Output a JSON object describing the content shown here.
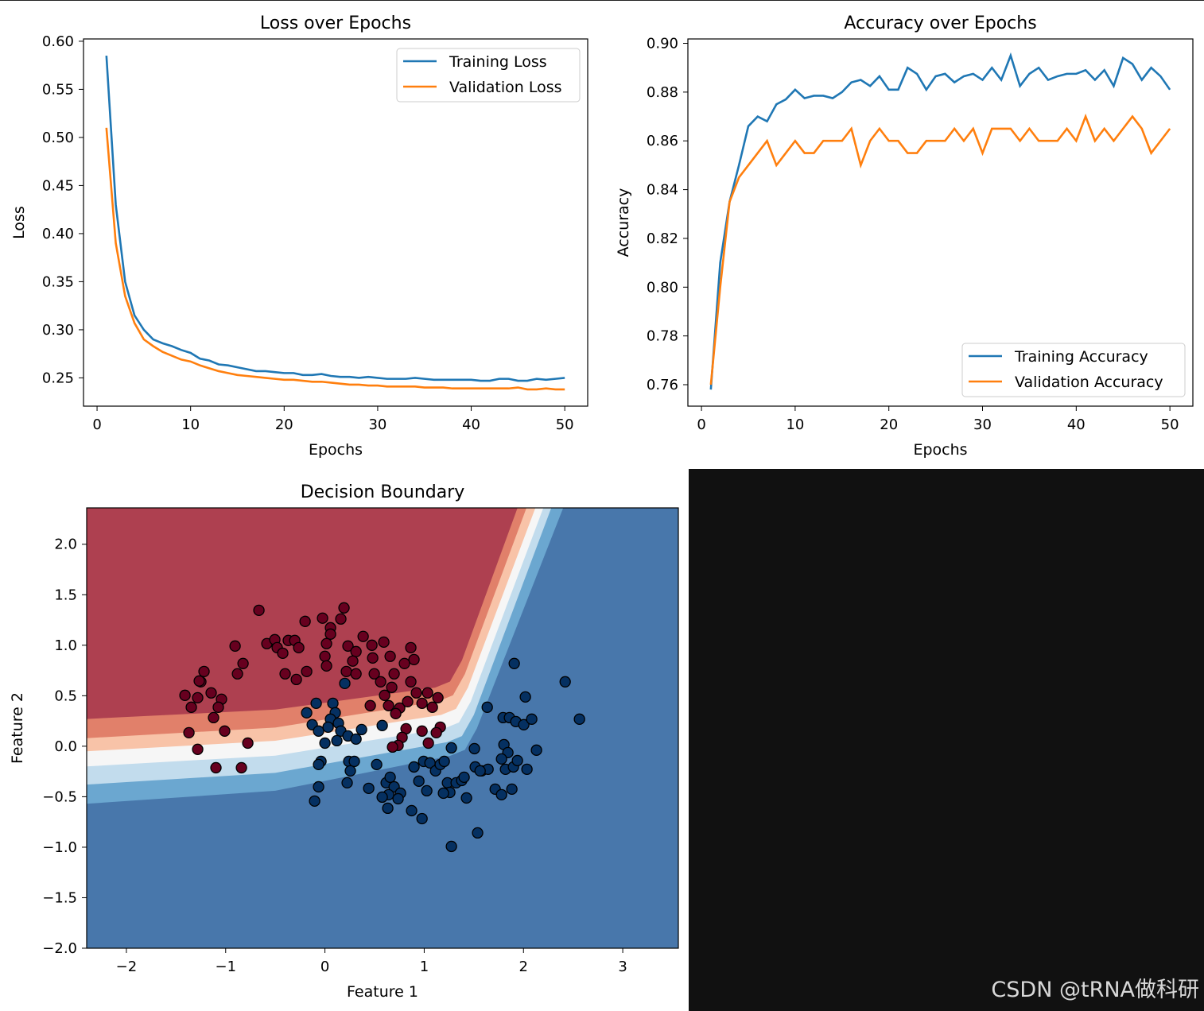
{
  "colors": {
    "training": "#1f77b4",
    "validation": "#ff7f0e",
    "class0": "#67001f",
    "class1": "#053061",
    "contour": [
      "#ae4050",
      "#e1806a",
      "#f8c3a8",
      "#f6f6f6",
      "#c2dced",
      "#6ba7d0",
      "#4877ab"
    ]
  },
  "watermark": "CSDN @tRNA做科研",
  "chart_data": [
    {
      "type": "line",
      "title": "Loss over Epochs",
      "xlabel": "Epochs",
      "ylabel": "Loss",
      "xlim": [
        -1.45,
        52.45
      ],
      "ylim": [
        0.2206,
        0.6024
      ],
      "xticks": [
        0,
        10,
        20,
        30,
        40,
        50
      ],
      "yticks": [
        0.25,
        0.3,
        0.35,
        0.4,
        0.45,
        0.5,
        0.55,
        0.6
      ],
      "ytick_labels": [
        "0.25",
        "0.30",
        "0.35",
        "0.40",
        "0.45",
        "0.50",
        "0.55",
        "0.60"
      ],
      "legend": "top-right",
      "grid": false,
      "x": [
        1,
        2,
        3,
        4,
        5,
        6,
        7,
        8,
        9,
        10,
        11,
        12,
        13,
        14,
        15,
        16,
        17,
        18,
        19,
        20,
        21,
        22,
        23,
        24,
        25,
        26,
        27,
        28,
        29,
        30,
        31,
        32,
        33,
        34,
        35,
        36,
        37,
        38,
        39,
        40,
        41,
        42,
        43,
        44,
        45,
        46,
        47,
        48,
        49,
        50
      ],
      "series": [
        {
          "name": "Training Loss",
          "values": [
            0.585,
            0.43,
            0.35,
            0.315,
            0.3,
            0.29,
            0.286,
            0.283,
            0.279,
            0.276,
            0.27,
            0.268,
            0.264,
            0.263,
            0.261,
            0.259,
            0.257,
            0.257,
            0.256,
            0.255,
            0.255,
            0.253,
            0.253,
            0.254,
            0.252,
            0.251,
            0.251,
            0.25,
            0.251,
            0.25,
            0.249,
            0.249,
            0.249,
            0.25,
            0.249,
            0.248,
            0.248,
            0.248,
            0.248,
            0.248,
            0.247,
            0.247,
            0.249,
            0.249,
            0.247,
            0.247,
            0.249,
            0.248,
            0.249,
            0.25
          ]
        },
        {
          "name": "Validation Loss",
          "values": [
            0.51,
            0.39,
            0.335,
            0.307,
            0.29,
            0.283,
            0.277,
            0.273,
            0.269,
            0.267,
            0.263,
            0.26,
            0.257,
            0.255,
            0.253,
            0.252,
            0.251,
            0.25,
            0.249,
            0.248,
            0.248,
            0.247,
            0.246,
            0.246,
            0.245,
            0.244,
            0.243,
            0.243,
            0.242,
            0.242,
            0.241,
            0.241,
            0.241,
            0.241,
            0.24,
            0.24,
            0.24,
            0.239,
            0.239,
            0.239,
            0.239,
            0.239,
            0.239,
            0.239,
            0.24,
            0.238,
            0.238,
            0.239,
            0.238,
            0.238
          ]
        }
      ]
    },
    {
      "type": "line",
      "title": "Accuracy over Epochs",
      "xlabel": "Epochs",
      "ylabel": "Accuracy",
      "xlim": [
        -1.45,
        52.45
      ],
      "ylim": [
        0.7512,
        0.9018
      ],
      "xticks": [
        0,
        10,
        20,
        30,
        40,
        50
      ],
      "yticks": [
        0.76,
        0.78,
        0.8,
        0.82,
        0.84,
        0.86,
        0.88,
        0.9
      ],
      "ytick_labels": [
        "0.76",
        "0.78",
        "0.80",
        "0.82",
        "0.84",
        "0.86",
        "0.88",
        "0.90"
      ],
      "legend": "bottom-right",
      "grid": false,
      "x": [
        1,
        2,
        3,
        4,
        5,
        6,
        7,
        8,
        9,
        10,
        11,
        12,
        13,
        14,
        15,
        16,
        17,
        18,
        19,
        20,
        21,
        22,
        23,
        24,
        25,
        26,
        27,
        28,
        29,
        30,
        31,
        32,
        33,
        34,
        35,
        36,
        37,
        38,
        39,
        40,
        41,
        42,
        43,
        44,
        45,
        46,
        47,
        48,
        49,
        50
      ],
      "series": [
        {
          "name": "Training Accuracy",
          "values": [
            0.758,
            0.81,
            0.835,
            0.85,
            0.866,
            0.87,
            0.868,
            0.875,
            0.877,
            0.881,
            0.8775,
            0.8785,
            0.8785,
            0.8775,
            0.88,
            0.884,
            0.885,
            0.8825,
            0.8865,
            0.881,
            0.881,
            0.89,
            0.8875,
            0.881,
            0.8865,
            0.8875,
            0.884,
            0.8865,
            0.8875,
            0.885,
            0.89,
            0.885,
            0.895,
            0.8825,
            0.8875,
            0.89,
            0.885,
            0.8865,
            0.8875,
            0.8875,
            0.889,
            0.885,
            0.889,
            0.8825,
            0.894,
            0.8915,
            0.885,
            0.89,
            0.8865,
            0.881
          ]
        },
        {
          "name": "Validation Accuracy",
          "values": [
            0.76,
            0.8,
            0.835,
            0.845,
            0.85,
            0.855,
            0.86,
            0.85,
            0.855,
            0.86,
            0.855,
            0.855,
            0.86,
            0.86,
            0.86,
            0.865,
            0.85,
            0.86,
            0.865,
            0.86,
            0.86,
            0.855,
            0.855,
            0.86,
            0.86,
            0.86,
            0.865,
            0.86,
            0.865,
            0.855,
            0.865,
            0.865,
            0.865,
            0.86,
            0.865,
            0.86,
            0.86,
            0.86,
            0.865,
            0.86,
            0.87,
            0.86,
            0.865,
            0.86,
            0.865,
            0.87,
            0.865,
            0.855,
            0.86,
            0.865
          ]
        }
      ]
    },
    {
      "type": "scatter",
      "title": "Decision Boundary",
      "xlabel": "Feature 1",
      "ylabel": "Feature 2",
      "xlim": [
        -2.4,
        3.56
      ],
      "ylim": [
        -2.0,
        2.36
      ],
      "xticks": [
        -2,
        -1,
        0,
        1,
        2,
        3
      ],
      "xtick_labels": [
        "−2",
        "−1",
        "0",
        "1",
        "2",
        "3"
      ],
      "yticks": [
        -2.0,
        -1.5,
        -1.0,
        -0.5,
        0.0,
        0.5,
        1.0,
        1.5,
        2.0
      ],
      "ytick_labels": [
        "−2.0",
        "−1.5",
        "−1.0",
        "−0.5",
        "0.0",
        "0.5",
        "1.0",
        "1.5",
        "2.0"
      ],
      "background": "filled contour of predicted class probability (red = class 0, blue = class 1)",
      "grid": false,
      "series": [
        {
          "class": 0,
          "points": [
            [
              -0.665,
              1.346
            ],
            [
              -0.2,
              1.236
            ],
            [
              -0.024,
              1.268
            ],
            [
              0.192,
              1.37
            ],
            [
              0.16,
              1.26
            ],
            [
              0.056,
              1.173
            ],
            [
              0.056,
              1.11
            ],
            [
              0.016,
              1.016
            ],
            [
              0.0,
              0.89
            ],
            [
              0.016,
              0.795
            ],
            [
              -0.905,
              0.992
            ],
            [
              -0.585,
              1.016
            ],
            [
              -0.505,
              1.055
            ],
            [
              -0.481,
              0.976
            ],
            [
              -0.425,
              0.921
            ],
            [
              -0.369,
              1.047
            ],
            [
              -0.304,
              1.047
            ],
            [
              -0.264,
              0.976
            ],
            [
              -0.184,
              0.74
            ],
            [
              -0.401,
              0.717
            ],
            [
              -0.288,
              0.661
            ],
            [
              -0.825,
              0.819
            ],
            [
              -0.881,
              0.717
            ],
            [
              -1.218,
              0.74
            ],
            [
              -1.25,
              0.638
            ],
            [
              -1.346,
              0.386
            ],
            [
              -1.41,
              0.504
            ],
            [
              -1.282,
              0.48
            ],
            [
              -1.146,
              0.528
            ],
            [
              -1.042,
              0.465
            ],
            [
              -1.074,
              0.386
            ],
            [
              -1.122,
              0.283
            ],
            [
              -1.01,
              0.15
            ],
            [
              -1.37,
              0.134
            ],
            [
              -1.282,
              -0.031
            ],
            [
              -1.098,
              -0.213
            ],
            [
              -0.841,
              -0.213
            ],
            [
              -0.777,
              0.031
            ],
            [
              0.232,
              0.992
            ],
            [
              0.385,
              1.087
            ],
            [
              0.593,
              1.031
            ],
            [
              0.313,
              0.937
            ],
            [
              0.28,
              0.843
            ],
            [
              0.216,
              0.74
            ],
            [
              0.313,
              0.717
            ],
            [
              0.473,
              1.0
            ],
            [
              0.481,
              0.874
            ],
            [
              0.657,
              0.89
            ],
            [
              0.497,
              0.717
            ],
            [
              0.561,
              0.638
            ],
            [
              0.697,
              0.717
            ],
            [
              0.673,
              0.583
            ],
            [
              0.865,
              0.976
            ],
            [
              0.897,
              0.858
            ],
            [
              0.801,
              0.819
            ],
            [
              0.865,
              0.638
            ],
            [
              0.601,
              0.504
            ],
            [
              0.641,
              0.402
            ],
            [
              0.457,
              0.402
            ],
            [
              0.753,
              0.378
            ],
            [
              0.713,
              0.323
            ],
            [
              0.833,
              0.441
            ],
            [
              0.921,
              0.528
            ],
            [
              1.034,
              0.528
            ],
            [
              0.978,
              0.425
            ],
            [
              1.138,
              0.48
            ],
            [
              1.082,
              0.386
            ],
            [
              1.162,
              0.189
            ],
            [
              1.122,
              0.134
            ],
            [
              0.978,
              0.15
            ],
            [
              0.817,
              0.173
            ],
            [
              0.777,
              0.087
            ],
            [
              0.737,
              0.008
            ],
            [
              0.681,
              -0.008
            ],
            [
              1.042,
              0.031
            ],
            [
              -1.266,
              0.646
            ]
          ]
        },
        {
          "class": 1,
          "points": [
            [
              0.2,
              0.622
            ],
            [
              -0.184,
              0.331
            ],
            [
              -0.088,
              0.425
            ],
            [
              0.08,
              0.425
            ],
            [
              0.104,
              0.331
            ],
            [
              0.056,
              0.268
            ],
            [
              -0.128,
              0.213
            ],
            [
              -0.064,
              0.15
            ],
            [
              0.032,
              0.189
            ],
            [
              0.136,
              0.228
            ],
            [
              0.16,
              0.15
            ],
            [
              0.0,
              0.031
            ],
            [
              0.12,
              0.055
            ],
            [
              0.232,
              0.102
            ],
            [
              0.369,
              0.165
            ],
            [
              0.313,
              0.071
            ],
            [
              0.577,
              0.205
            ],
            [
              -0.04,
              -0.15
            ],
            [
              -0.064,
              -0.181
            ],
            [
              -0.064,
              -0.402
            ],
            [
              -0.104,
              -0.543
            ],
            [
              0.24,
              -0.15
            ],
            [
              0.296,
              -0.15
            ],
            [
              0.256,
              -0.244
            ],
            [
              0.224,
              -0.362
            ],
            [
              0.441,
              -0.417
            ],
            [
              0.521,
              -0.181
            ],
            [
              0.617,
              -0.362
            ],
            [
              0.657,
              -0.307
            ],
            [
              0.697,
              -0.402
            ],
            [
              0.641,
              -0.48
            ],
            [
              0.577,
              -0.504
            ],
            [
              0.633,
              -0.614
            ],
            [
              0.761,
              -0.465
            ],
            [
              0.737,
              -0.52
            ],
            [
              0.873,
              -0.638
            ],
            [
              0.978,
              -0.717
            ],
            [
              0.897,
              -0.205
            ],
            [
              0.946,
              -0.346
            ],
            [
              1.026,
              -0.441
            ],
            [
              0.994,
              -0.15
            ],
            [
              1.058,
              -0.165
            ],
            [
              1.114,
              -0.244
            ],
            [
              1.162,
              -0.181
            ],
            [
              1.202,
              -0.15
            ],
            [
              1.234,
              -0.362
            ],
            [
              1.258,
              -0.457
            ],
            [
              1.194,
              -0.465
            ],
            [
              1.274,
              -0.016
            ],
            [
              1.322,
              -0.362
            ],
            [
              1.378,
              -0.339
            ],
            [
              1.402,
              -0.307
            ],
            [
              1.426,
              -0.512
            ],
            [
              1.506,
              -0.024
            ],
            [
              1.514,
              -0.205
            ],
            [
              1.579,
              -0.244
            ],
            [
              1.643,
              -0.228
            ],
            [
              1.635,
              0.386
            ],
            [
              1.795,
              0.283
            ],
            [
              1.859,
              0.283
            ],
            [
              1.923,
              0.244
            ],
            [
              2.003,
              0.213
            ],
            [
              2.083,
              0.268
            ],
            [
              2.019,
              0.488
            ],
            [
              1.907,
              0.819
            ],
            [
              1.803,
              0.016
            ],
            [
              1.843,
              -0.063
            ],
            [
              1.779,
              -0.126
            ],
            [
              1.819,
              -0.228
            ],
            [
              1.899,
              -0.205
            ],
            [
              1.939,
              -0.142
            ],
            [
              2.035,
              -0.228
            ],
            [
              2.131,
              -0.039
            ],
            [
              1.715,
              -0.425
            ],
            [
              1.779,
              -0.48
            ],
            [
              1.883,
              -0.425
            ],
            [
              1.538,
              -0.858
            ],
            [
              1.274,
              -0.992
            ],
            [
              2.42,
              0.638
            ],
            [
              2.564,
              0.268
            ],
            [
              1.563,
              -0.244
            ]
          ]
        }
      ]
    }
  ]
}
